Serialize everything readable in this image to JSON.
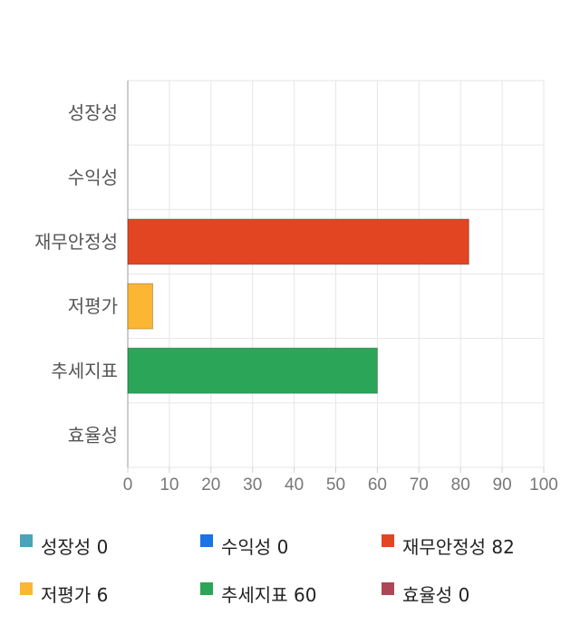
{
  "chart_data": {
    "type": "bar",
    "orientation": "horizontal",
    "categories": [
      "성장성",
      "수익성",
      "재무안정성",
      "저평가",
      "추세지표",
      "효율성"
    ],
    "values": [
      0,
      0,
      82,
      6,
      60,
      0
    ],
    "colors": [
      "#4aa3b8",
      "#1a73e8",
      "#e24522",
      "#fbb733",
      "#2ba557",
      "#ad4656"
    ],
    "xlim": [
      0,
      100
    ],
    "xticks": [
      "0",
      "10",
      "20",
      "30",
      "40",
      "50",
      "60",
      "70",
      "80",
      "90",
      "100"
    ],
    "grid": true,
    "legend_position": "bottom"
  },
  "legend": {
    "items": [
      {
        "label": "성장성",
        "value": "0",
        "color": "#4aa3b8"
      },
      {
        "label": "수익성",
        "value": "0",
        "color": "#1a73e8"
      },
      {
        "label": "재무안정성",
        "value": "82",
        "color": "#e24522"
      },
      {
        "label": "저평가",
        "value": "6",
        "color": "#fbb733"
      },
      {
        "label": "추세지표",
        "value": "60",
        "color": "#2ba557"
      },
      {
        "label": "효율성",
        "value": "0",
        "color": "#ad4656"
      }
    ]
  }
}
